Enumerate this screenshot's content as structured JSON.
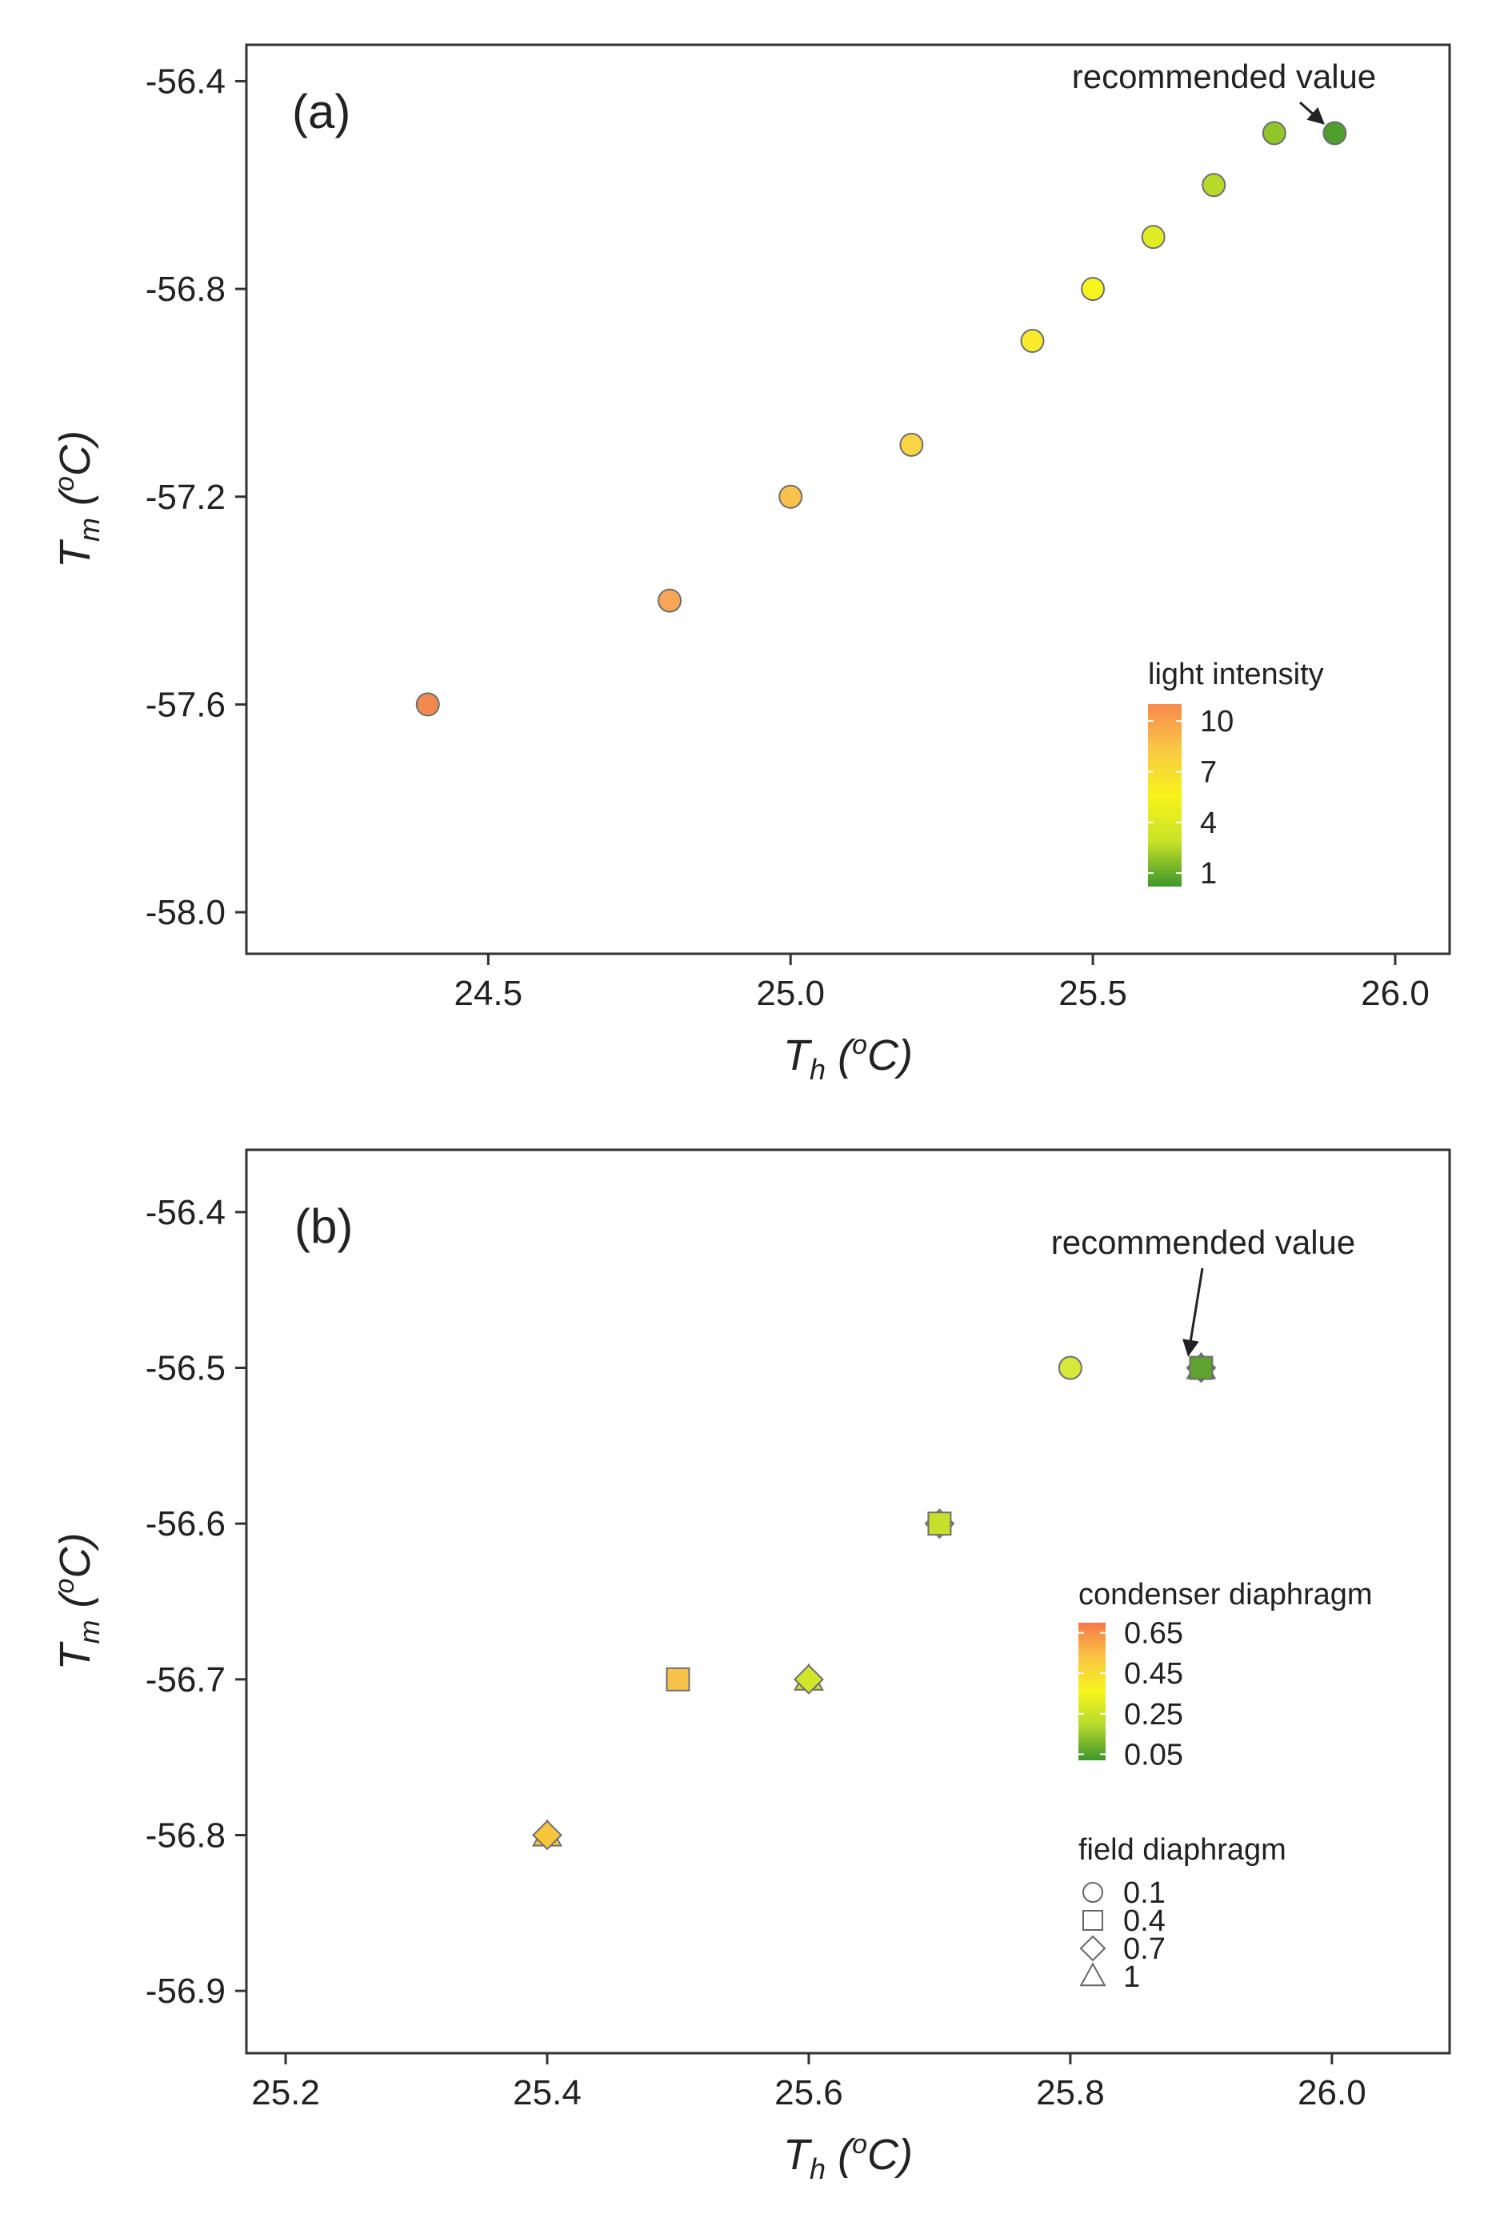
{
  "chart_data": [
    {
      "type": "scatter",
      "panel_label": "(a)",
      "xlabel": {
        "main": "T",
        "sub": "h",
        "sup": "o",
        "unit": "C"
      },
      "ylabel": {
        "main": "T",
        "sub": "m",
        "sup": "o",
        "unit": "C"
      },
      "xlim": [
        24.1,
        26.09
      ],
      "ylim": [
        -58.08,
        -56.33
      ],
      "xticks": [
        24.5,
        25.0,
        25.5,
        26.0
      ],
      "xtick_labels": [
        "24.5",
        "25.0",
        "25.5",
        "26.0"
      ],
      "yticks": [
        -56.4,
        -56.8,
        -57.2,
        -57.6,
        -58.0
      ],
      "ytick_labels": [
        "-56.4",
        "-56.8",
        "-57.2",
        "-57.6",
        "-58.0"
      ],
      "points": [
        {
          "x": 24.4,
          "y": -57.6,
          "light_intensity": 11,
          "color": "#f28a50"
        },
        {
          "x": 24.8,
          "y": -57.4,
          "light_intensity": 10,
          "color": "#f6a654"
        },
        {
          "x": 25.0,
          "y": -57.2,
          "light_intensity": 9,
          "color": "#f8c24c"
        },
        {
          "x": 25.2,
          "y": -57.1,
          "light_intensity": 8,
          "color": "#f9d445"
        },
        {
          "x": 25.4,
          "y": -56.9,
          "light_intensity": 7,
          "color": "#f8ec2a"
        },
        {
          "x": 25.5,
          "y": -56.8,
          "light_intensity": 6,
          "color": "#f7f51e"
        },
        {
          "x": 25.6,
          "y": -56.7,
          "light_intensity": 5,
          "color": "#dfee23"
        },
        {
          "x": 25.7,
          "y": -56.6,
          "light_intensity": 4,
          "color": "#b6da2a"
        },
        {
          "x": 25.8,
          "y": -56.5,
          "light_intensity": 3,
          "color": "#90c62a"
        },
        {
          "x": 25.9,
          "y": -56.5,
          "light_intensity": 1,
          "color": "#4e9e2c"
        }
      ],
      "annotation": {
        "text": "recommended value",
        "target": {
          "x": 25.9,
          "y": -56.5
        }
      },
      "legend": {
        "title": "light intensity",
        "placement": "bottom-right",
        "ticks": [
          10,
          7,
          4,
          1
        ],
        "tick_labels": [
          "10",
          "7",
          "4",
          "1"
        ],
        "range": [
          0.2,
          11
        ],
        "gradient": [
          "#f8894d",
          "#f9c845",
          "#f8f31a",
          "#c8e327",
          "#3d962b"
        ]
      },
      "grid": false
    },
    {
      "type": "scatter",
      "panel_label": "(b)",
      "xlabel": {
        "main": "T",
        "sub": "h",
        "sup": "o",
        "unit": "C"
      },
      "ylabel": {
        "main": "T",
        "sub": "m",
        "sup": "o",
        "unit": "C"
      },
      "xlim": [
        25.17,
        26.09
      ],
      "ylim": [
        -56.94,
        -56.36
      ],
      "xticks": [
        25.2,
        25.4,
        25.6,
        25.8,
        26.0
      ],
      "xtick_labels": [
        "25.2",
        "25.4",
        "25.6",
        "25.8",
        "26.0"
      ],
      "yticks": [
        -56.4,
        -56.5,
        -56.6,
        -56.7,
        -56.8,
        -56.9
      ],
      "ytick_labels": [
        "-56.4",
        "-56.5",
        "-56.6",
        "-56.7",
        "-56.8",
        "-56.9"
      ],
      "points": [
        {
          "x": 25.4,
          "y": -56.8,
          "field_diaphragm": 1,
          "shape": "triangle",
          "color": "#f5c944"
        },
        {
          "x": 25.4,
          "y": -56.8,
          "field_diaphragm": 0.7,
          "shape": "diamond",
          "color": "#f8c63d"
        },
        {
          "x": 25.5,
          "y": -56.7,
          "field_diaphragm": 0.4,
          "shape": "square",
          "color": "#f6c24a"
        },
        {
          "x": 25.6,
          "y": -56.7,
          "field_diaphragm": 1,
          "shape": "triangle",
          "color": "#cbe02c"
        },
        {
          "x": 25.6,
          "y": -56.7,
          "field_diaphragm": 0.7,
          "shape": "diamond",
          "color": "#d3e52a"
        },
        {
          "x": 25.7,
          "y": -56.6,
          "field_diaphragm": 0.7,
          "shape": "diamond",
          "color": "#bcdc2c"
        },
        {
          "x": 25.7,
          "y": -56.6,
          "field_diaphragm": 0.4,
          "shape": "square",
          "color": "#c4df2c"
        },
        {
          "x": 25.8,
          "y": -56.5,
          "field_diaphragm": 0.1,
          "shape": "circle",
          "color": "#d6e93a"
        },
        {
          "x": 25.9,
          "y": -56.5,
          "field_diaphragm": 1,
          "shape": "triangle",
          "color": "#5ea230"
        },
        {
          "x": 25.9,
          "y": -56.5,
          "field_diaphragm": 0.7,
          "shape": "diamond",
          "color": "#5c9f2e"
        },
        {
          "x": 25.9,
          "y": -56.5,
          "field_diaphragm": 0.4,
          "shape": "square",
          "color": "#60a22f"
        }
      ],
      "annotation": {
        "text": "recommended value",
        "target": {
          "x": 25.9,
          "y": -56.5
        }
      },
      "legend": {
        "title": "condenser diaphragm",
        "placement": "right",
        "ticks": [
          0.65,
          0.45,
          0.25,
          0.05
        ],
        "tick_labels": [
          "0.65",
          "0.45",
          "0.25",
          "0.05"
        ],
        "range": [
          0.02,
          0.7
        ],
        "gradient": [
          "#f7784a",
          "#f9c443",
          "#f6f51c",
          "#b2d82c",
          "#3e952c"
        ]
      },
      "shape_legend": {
        "title": "field diaphragm",
        "items": [
          {
            "shape": "circle",
            "label": "0.1"
          },
          {
            "shape": "square",
            "label": "0.4"
          },
          {
            "shape": "diamond",
            "label": "0.7"
          },
          {
            "shape": "triangle",
            "label": "1"
          }
        ]
      },
      "grid": false
    }
  ]
}
